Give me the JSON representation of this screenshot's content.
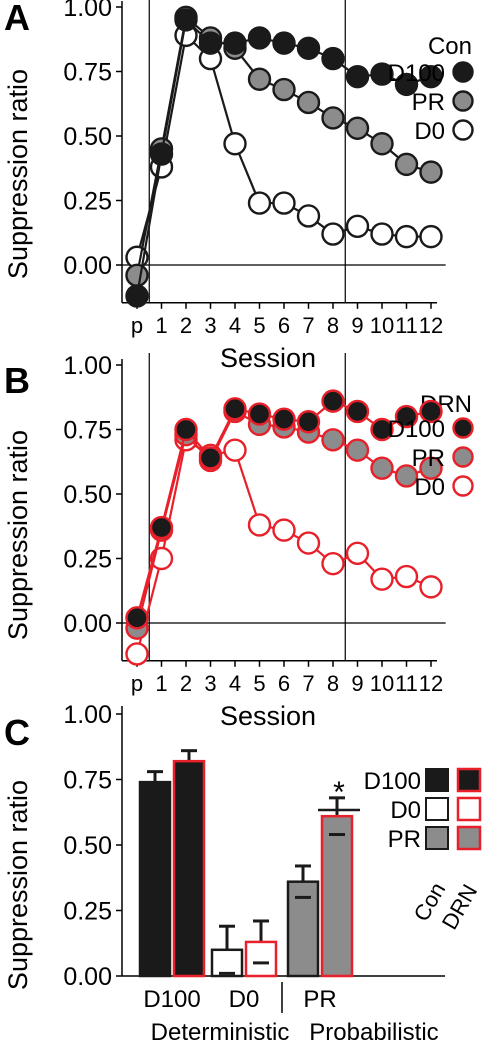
{
  "colors": {
    "black": "#1a1a1a",
    "gray": "#8c8c8c",
    "white": "#ffffff",
    "red": "#e8202a",
    "axis": "#000000"
  },
  "chart_data": [
    {
      "panel": "A",
      "type": "line",
      "legend_title": "Con",
      "legend_position": "top-right",
      "xlabel": "Session",
      "ylabel": "Suppression ratio",
      "ylim": [
        -0.1,
        1.0
      ],
      "yticks": [
        "1.00",
        "0.75",
        "0.50",
        "0.25",
        "0.00"
      ],
      "x": [
        "p",
        "1",
        "2",
        "3",
        "4",
        "5",
        "6",
        "7",
        "8",
        "9",
        "10",
        "11",
        "12"
      ],
      "xtick_labels": [
        "p",
        "1",
        "2",
        "3",
        "4",
        "5",
        "6",
        "7",
        "8",
        "9",
        "10",
        "11",
        "12"
      ],
      "series": [
        {
          "name": "D100",
          "values": [
            -0.12,
            0.43,
            0.95,
            0.86,
            0.86,
            0.88,
            0.86,
            0.84,
            0.8,
            0.73,
            0.74,
            0.7,
            0.73
          ]
        },
        {
          "name": "PR",
          "values": [
            -0.04,
            0.45,
            0.96,
            0.88,
            0.84,
            0.72,
            0.68,
            0.63,
            0.57,
            0.53,
            0.47,
            0.39,
            0.36
          ]
        },
        {
          "name": "D0",
          "values": [
            0.03,
            0.38,
            0.89,
            0.8,
            0.47,
            0.24,
            0.24,
            0.19,
            0.12,
            0.15,
            0.12,
            0.11,
            0.11
          ]
        }
      ]
    },
    {
      "panel": "B",
      "type": "line",
      "legend_title": "DRN",
      "legend_position": "top-right",
      "xlabel": "Session",
      "ylabel": "Suppression ratio",
      "ylim": [
        -0.1,
        1.0
      ],
      "yticks": [
        "1.00",
        "0.75",
        "0.50",
        "0.25",
        "0.00"
      ],
      "x": [
        "p",
        "1",
        "2",
        "3",
        "4",
        "5",
        "6",
        "7",
        "8",
        "9",
        "10",
        "11",
        "12"
      ],
      "xtick_labels": [
        "p",
        "1",
        "2",
        "3",
        "4",
        "5",
        "6",
        "7",
        "8",
        "9",
        "10",
        "11",
        "12"
      ],
      "series": [
        {
          "name": "D100",
          "values": [
            0.02,
            0.37,
            0.75,
            0.64,
            0.83,
            0.81,
            0.79,
            0.78,
            0.86,
            0.82,
            0.75,
            0.8,
            0.82
          ]
        },
        {
          "name": "PR",
          "values": [
            -0.02,
            0.36,
            0.73,
            0.63,
            0.82,
            0.77,
            0.76,
            0.74,
            0.71,
            0.67,
            0.6,
            0.57,
            0.6
          ]
        },
        {
          "name": "D0",
          "values": [
            -0.12,
            0.25,
            0.71,
            0.65,
            0.67,
            0.38,
            0.36,
            0.31,
            0.23,
            0.27,
            0.17,
            0.18,
            0.14
          ]
        }
      ]
    },
    {
      "panel": "C",
      "type": "bar",
      "ylabel": "Suppression ratio",
      "ylim": [
        0,
        1.0
      ],
      "yticks": [
        "1.00",
        "0.75",
        "0.50",
        "0.25",
        "0.00"
      ],
      "categories": [
        "D100",
        "D0",
        "PR"
      ],
      "groups": [
        "Deterministic",
        "Probabilistic"
      ],
      "legend_items": [
        "D100",
        "D0",
        "PR"
      ],
      "legend_columns": [
        "Con",
        "DRN"
      ],
      "legend_position": "top-right",
      "series": [
        {
          "name": "Con",
          "values": [
            0.74,
            0.1,
            0.36
          ],
          "errors": [
            0.04,
            0.09,
            0.06
          ]
        },
        {
          "name": "DRN",
          "values": [
            0.82,
            0.13,
            0.61
          ],
          "errors": [
            0.04,
            0.08,
            0.07
          ]
        }
      ],
      "significance": "*"
    }
  ]
}
